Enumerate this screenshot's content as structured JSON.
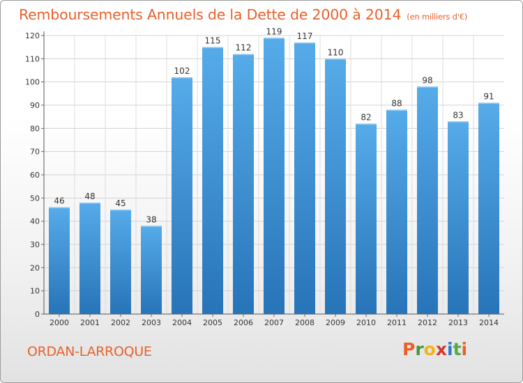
{
  "header": {
    "title": "Remboursements Annuels de la Dette de 2000 à 2014",
    "subtitle": "(en milliers d'€)"
  },
  "footer": {
    "commune": "ORDAN-LARROQUE",
    "logo_text": "Proxiti",
    "logo_colors": [
      "#e8612c",
      "#3f9a3f",
      "#f1b418",
      "#d03a2e",
      "#2f78c4",
      "#52ad46",
      "#e8612c"
    ]
  },
  "chart_data": {
    "type": "bar",
    "title": "Remboursements Annuels de la Dette de 2000 à 2014",
    "subtitle": "(en milliers d'€)",
    "categories": [
      "2000",
      "2001",
      "2002",
      "2003",
      "2004",
      "2005",
      "2006",
      "2007",
      "2008",
      "2009",
      "2010",
      "2011",
      "2012",
      "2013",
      "2014"
    ],
    "values": [
      46,
      48,
      45,
      38,
      102,
      115,
      112,
      119,
      117,
      110,
      82,
      88,
      98,
      83,
      91
    ],
    "ylim": [
      0,
      120
    ],
    "yticks": [
      0,
      10,
      20,
      30,
      40,
      50,
      60,
      70,
      80,
      90,
      100,
      110,
      120
    ],
    "xlabel": "",
    "ylabel": "",
    "grid": true,
    "data_labels": true,
    "bar_color": "#4fa3e3",
    "bar_color_dark": "#2a79be"
  }
}
